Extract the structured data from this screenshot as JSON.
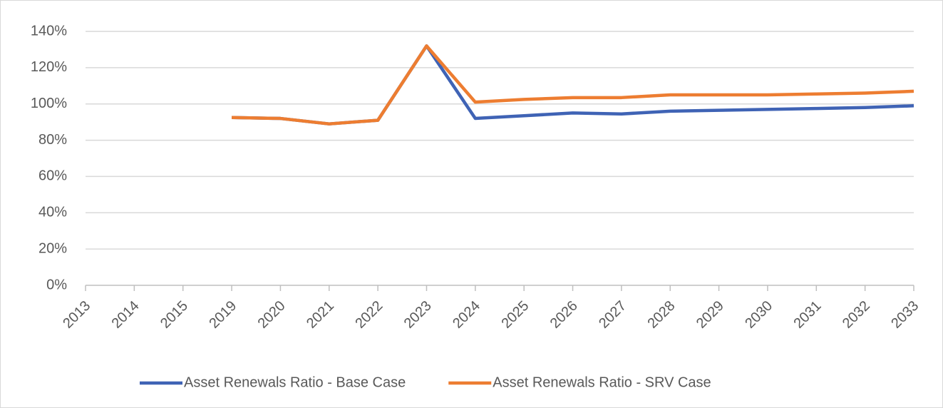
{
  "chart_data": {
    "type": "line",
    "categories": [
      "2013",
      "2014",
      "2015",
      "2019",
      "2020",
      "2021",
      "2022",
      "2023",
      "2024",
      "2025",
      "2026",
      "2027",
      "2028",
      "2029",
      "2030",
      "2031",
      "2032",
      "2033"
    ],
    "series": [
      {
        "name": "Asset Renewals Ratio - Base Case",
        "color": "#3f63b5",
        "values": [
          null,
          null,
          null,
          92.5,
          92,
          89,
          91,
          132,
          92,
          93.5,
          95,
          94.5,
          96,
          96.5,
          97,
          97.5,
          98,
          99
        ]
      },
      {
        "name": "Asset Renewals Ratio - SRV Case",
        "color": "#ed7d31",
        "values": [
          null,
          null,
          null,
          92.5,
          92,
          89,
          91,
          132,
          101,
          102.5,
          103.5,
          103.5,
          105,
          105,
          105,
          105.5,
          106,
          107
        ]
      }
    ],
    "ylim": [
      0,
      140
    ],
    "yticks": [
      {
        "value": 0,
        "label": "0%"
      },
      {
        "value": 20,
        "label": "20%"
      },
      {
        "value": 40,
        "label": "40%"
      },
      {
        "value": 60,
        "label": "60%"
      },
      {
        "value": 80,
        "label": "80%"
      },
      {
        "value": 100,
        "label": "100%"
      },
      {
        "value": 120,
        "label": "120%"
      },
      {
        "value": 140,
        "label": "140%"
      }
    ],
    "grid": true,
    "legend": "bottom"
  }
}
